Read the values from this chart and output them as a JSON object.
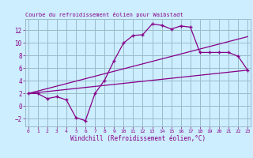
{
  "title": "Courbe du refroidissement éolien pour Waibstadt",
  "xlabel": "Windchill (Refroidissement éolien,°C)",
  "bg_color": "#cceeff",
  "line_color": "#880088",
  "grid_color": "#99bbcc",
  "line1_x": [
    0,
    1,
    2,
    3,
    4,
    5,
    6,
    7,
    8,
    9,
    10,
    11,
    12,
    13,
    14,
    15,
    16,
    17,
    18,
    19,
    20,
    21,
    22,
    23
  ],
  "line1_y": [
    2.0,
    2.0,
    1.2,
    1.5,
    1.0,
    -1.8,
    -2.3,
    2.0,
    4.1,
    7.2,
    10.0,
    11.2,
    11.3,
    13.0,
    12.8,
    12.2,
    12.7,
    12.5,
    8.5,
    8.5,
    8.5,
    8.5,
    7.9,
    5.7
  ],
  "line2_x": [
    0,
    23
  ],
  "line2_y": [
    2.0,
    5.7
  ],
  "line3_x": [
    0,
    23
  ],
  "line3_y": [
    2.0,
    11.0
  ],
  "xlim": [
    -0.3,
    23.3
  ],
  "ylim": [
    -3.2,
    13.8
  ],
  "xticks": [
    0,
    1,
    2,
    3,
    4,
    5,
    6,
    7,
    8,
    9,
    10,
    11,
    12,
    13,
    14,
    15,
    16,
    17,
    18,
    19,
    20,
    21,
    22,
    23
  ],
  "yticks": [
    -2,
    0,
    2,
    4,
    6,
    8,
    10,
    12
  ]
}
